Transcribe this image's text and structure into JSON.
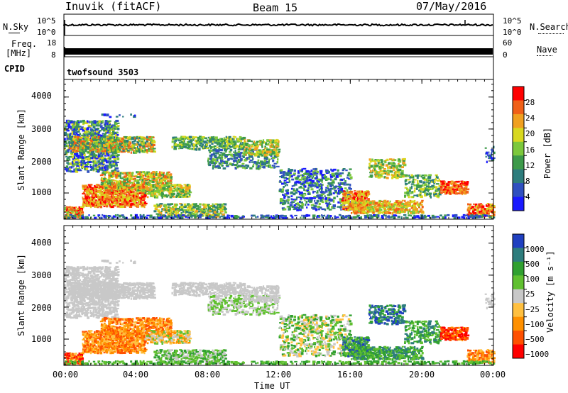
{
  "header": {
    "left": "Inuvik (fitACF)",
    "center": "Beam 15",
    "right": "07/May/2016"
  },
  "top_panels": {
    "nsky_label": "N.Sky",
    "nsky_ticks": [
      "10^5",
      "10^0"
    ],
    "nsearch_label": "N.Search",
    "nsearch_ticks": [
      "10^5",
      "10^0"
    ],
    "freq_label_line1": "Freq.",
    "freq_label_line2": "[MHz]",
    "freq_ticks": [
      "18",
      "8"
    ],
    "nave_label": "Nave",
    "nave_ticks": [
      "60",
      "0"
    ],
    "cpid_label": "CPID",
    "cpid_value": "twofsound 3503"
  },
  "colors": {
    "power_scale": [
      "#1a1aff",
      "#3050c0",
      "#2e7d7d",
      "#3d9a4a",
      "#7cc83c",
      "#d8d820",
      "#f0a020",
      "#f06018",
      "#ff0000"
    ],
    "velocity_scale": [
      "#ff0000",
      "#ff5000",
      "#ff9000",
      "#ffc040",
      "#c8c8c8",
      "#60c030",
      "#30a030",
      "#2e7d7d",
      "#2040c0"
    ],
    "ground_scatter": "#c0c0c0"
  },
  "chart_data": [
    {
      "type": "heatmap",
      "panel": "power",
      "xlabel": "",
      "ylabel": "Slant Range [km]",
      "y_ticks": [
        1000,
        2000,
        3000,
        4000
      ],
      "x_ticks": [
        "00:00",
        "04:00",
        "08:00",
        "12:00",
        "16:00",
        "20:00",
        "00:00"
      ],
      "colorbar_label": "Power [dB]",
      "colorbar_ticks": [
        "28",
        "24",
        "20",
        "16",
        "12",
        "8",
        "4"
      ]
    },
    {
      "type": "heatmap",
      "panel": "velocity",
      "xlabel": "Time UT",
      "ylabel": "Slant Range [km]",
      "y_ticks": [
        1000,
        2000,
        3000,
        4000
      ],
      "x_ticks": [
        "00:00",
        "04:00",
        "08:00",
        "12:00",
        "16:00",
        "20:00",
        "00:00"
      ],
      "colorbar_label": "Velocity [m s⁻¹]",
      "colorbar_ticks": [
        "1000",
        "500",
        "100",
        "25",
        "−25",
        "−100",
        "−500",
        "−1000"
      ]
    }
  ]
}
